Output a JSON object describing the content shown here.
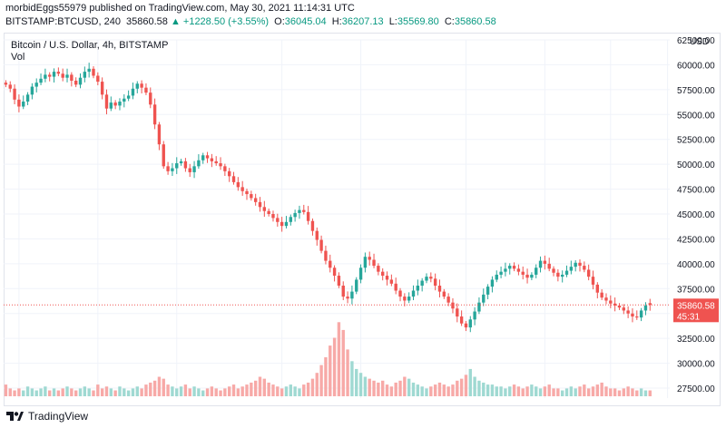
{
  "header": {
    "publisher_line": "morbidEggs55979 published on TradingView.com, May 30, 2021 11:14:31 UTC",
    "symbol": "BITSTAMP:BTCUSD, 240",
    "last_price": "35860.58",
    "change": "▲ +1228.50 (+3.55%)",
    "open_label": "O:",
    "open": "36045.04",
    "high_label": "H:",
    "high": "36207.13",
    "low_label": "L:",
    "low": "35569.80",
    "close_label": "C:",
    "close": "35860.58"
  },
  "legend": {
    "title": "Bitcoin / U.S. Dollar, 4h, BITSTAMP",
    "volume_label": "Vol"
  },
  "price_axis": {
    "currency": "USD",
    "last_price_tag": "35860.58",
    "countdown_tag": "45:31"
  },
  "footer": {
    "brand": "TradingView"
  },
  "colors": {
    "up": "#26a69a",
    "down": "#ef5350",
    "up_vol": "#9fd9d2",
    "down_vol": "#f7a9a7",
    "text": "#131722",
    "grid": "#f0f3fa",
    "tag": "#ef5350"
  },
  "chart_data": {
    "type": "candlestick",
    "title": "Bitcoin / U.S. Dollar, 4h, BITSTAMP",
    "y_unit": "USD",
    "ylim": [
      26500,
      62500
    ],
    "y_ticks": [
      "62500.00",
      "60000.00",
      "57500.00",
      "55000.00",
      "52500.00",
      "50000.00",
      "47500.00",
      "45000.00",
      "42500.00",
      "40000.00",
      "37500.00",
      "35000.00",
      "32500.00",
      "30000.00",
      "27500.00"
    ],
    "x_ticks": [
      "7",
      "10",
      "13",
      "17",
      "20",
      "24",
      "27",
      "12:00",
      "Ju"
    ],
    "x_tick_index": [
      3,
      21,
      39,
      63,
      81,
      105,
      123,
      138,
      151
    ],
    "bars_total": 152,
    "close_series": [
      58000,
      57600,
      56500,
      55800,
      56300,
      57000,
      57800,
      58200,
      58600,
      59000,
      58800,
      59300,
      59100,
      58700,
      59000,
      58400,
      58000,
      58700,
      59300,
      59600,
      58900,
      58300,
      57000,
      55600,
      56200,
      55900,
      56300,
      56600,
      56900,
      57600,
      58100,
      57700,
      57200,
      56000,
      54000,
      52000,
      49800,
      49300,
      49600,
      50100,
      50300,
      49600,
      49200,
      49800,
      50400,
      50900,
      50600,
      50300,
      50100,
      49800,
      49300,
      48800,
      48200,
      47700,
      47300,
      47000,
      46600,
      46200,
      45700,
      45300,
      45000,
      44600,
      44200,
      43800,
      44200,
      44700,
      45100,
      45400,
      45200,
      44300,
      43300,
      42400,
      41300,
      40300,
      39600,
      38800,
      37800,
      36700,
      36500,
      37200,
      38400,
      39600,
      40700,
      40400,
      39800,
      39200,
      38800,
      38400,
      38000,
      37300,
      36700,
      36300,
      36700,
      37300,
      37800,
      38300,
      38700,
      38500,
      37800,
      37200,
      36700,
      36100,
      35500,
      34700,
      34000,
      33600,
      34400,
      35200,
      36100,
      36900,
      37700,
      38400,
      38900,
      39200,
      39500,
      39800,
      39500,
      39200,
      38900,
      38600,
      38900,
      39600,
      40300,
      40000,
      39500,
      39100,
      38700,
      38900,
      39300,
      39700,
      40100,
      39800,
      39400,
      38700,
      37900,
      37100,
      36600,
      36300,
      36000,
      35800,
      35600,
      35300,
      35000,
      34700,
      34600,
      35300,
      35800,
      35860,
      35860,
      35860,
      35860,
      35860
    ],
    "open_series": [
      58200,
      58000,
      57600,
      56500,
      55800,
      56300,
      57000,
      57800,
      58200,
      58600,
      59000,
      58800,
      59300,
      59100,
      58700,
      59000,
      58400,
      58000,
      58700,
      59300,
      59600,
      58900,
      58300,
      57000,
      55600,
      56200,
      55900,
      56300,
      56600,
      56900,
      57600,
      58100,
      57700,
      57200,
      56000,
      54000,
      52000,
      49800,
      49300,
      49600,
      50100,
      50300,
      49600,
      49200,
      49800,
      50400,
      50900,
      50600,
      50300,
      50100,
      49800,
      49300,
      48800,
      48200,
      47700,
      47300,
      47000,
      46600,
      46200,
      45700,
      45300,
      45000,
      44600,
      44200,
      43800,
      44200,
      44700,
      45100,
      45400,
      45200,
      44300,
      43300,
      42400,
      41300,
      40300,
      39600,
      38800,
      37800,
      36700,
      36500,
      37200,
      38400,
      39600,
      40700,
      40400,
      39800,
      39200,
      38800,
      38400,
      38000,
      37300,
      36700,
      36300,
      36700,
      37300,
      37800,
      38300,
      38700,
      38500,
      37800,
      37200,
      36700,
      36100,
      35500,
      34700,
      34000,
      33600,
      34400,
      35200,
      36100,
      36900,
      37700,
      38400,
      38900,
      39200,
      39500,
      39800,
      39500,
      39200,
      38900,
      38600,
      38900,
      39600,
      40300,
      40000,
      39500,
      39100,
      38700,
      38900,
      39300,
      39700,
      40100,
      39800,
      39400,
      38700,
      37900,
      37100,
      36600,
      36300,
      36000,
      35800,
      35600,
      35300,
      35000,
      34700,
      34600,
      35300,
      36045,
      36045,
      36045,
      36045,
      36045
    ],
    "volume_series": [
      6,
      4,
      3,
      4,
      3,
      5,
      4,
      3,
      4,
      5,
      3,
      4,
      3,
      4,
      5,
      4,
      3,
      4,
      5,
      4,
      3,
      6,
      4,
      5,
      4,
      3,
      5,
      4,
      3,
      4,
      5,
      4,
      6,
      7,
      8,
      10,
      9,
      6,
      5,
      4,
      5,
      6,
      4,
      5,
      4,
      3,
      4,
      5,
      4,
      3,
      4,
      5,
      6,
      4,
      5,
      6,
      7,
      8,
      10,
      9,
      7,
      6,
      5,
      4,
      5,
      6,
      5,
      4,
      6,
      7,
      9,
      12,
      16,
      20,
      26,
      30,
      38,
      34,
      24,
      18,
      14,
      12,
      10,
      9,
      8,
      7,
      8,
      6,
      5,
      7,
      8,
      10,
      9,
      7,
      6,
      5,
      4,
      5,
      6,
      7,
      6,
      5,
      6,
      8,
      9,
      11,
      14,
      10,
      8,
      7,
      6,
      6,
      5,
      5,
      4,
      5,
      6,
      5,
      4,
      5,
      6,
      5,
      4,
      5,
      6,
      4,
      4,
      3,
      4,
      5,
      4,
      5,
      6,
      4,
      5,
      6,
      7,
      5,
      4,
      4,
      3,
      4,
      5,
      4,
      3,
      4,
      3,
      3,
      0,
      0,
      0,
      0
    ],
    "vol_max": 40,
    "last_price_line": 35860.58
  }
}
